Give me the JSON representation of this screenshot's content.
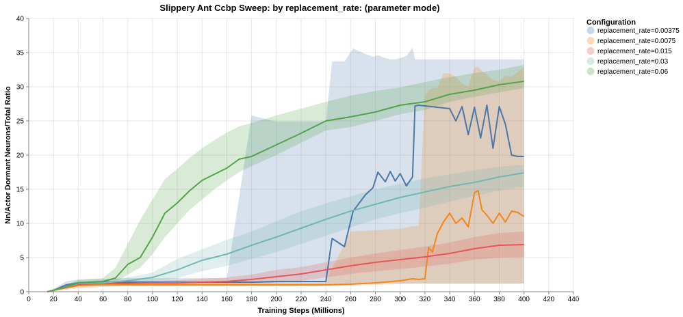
{
  "chart_data": {
    "type": "line",
    "title": "Slippery Ant Ccbp Sweep: by replacement_rate: (parameter mode)",
    "xlabel": "Training Steps (Millions)",
    "ylabel": "Nn/Actor Dormant Neurons/Total Ratio",
    "xlim": [
      0,
      440
    ],
    "ylim": [
      0,
      40
    ],
    "x_ticks": [
      "0",
      "20",
      "40",
      "60",
      "80",
      "100",
      "120",
      "140",
      "160",
      "180",
      "200",
      "220",
      "240",
      "260",
      "280",
      "300",
      "320",
      "340",
      "360",
      "380",
      "400",
      "420",
      "440"
    ],
    "y_ticks": [
      "0",
      "5",
      "10",
      "15",
      "20",
      "25",
      "30",
      "35",
      "40"
    ],
    "grid": true,
    "legend": {
      "title": "Configuration",
      "position": "top-right"
    },
    "series": [
      {
        "name": "replacement_rate=0.00375",
        "color": "#4c78a8",
        "x": [
          15,
          20,
          30,
          40,
          60,
          80,
          100,
          120,
          140,
          160,
          180,
          200,
          220,
          240,
          245,
          255,
          262,
          272,
          278,
          282,
          288,
          292,
          296,
          300,
          305,
          310,
          312,
          315,
          320,
          330,
          340,
          345,
          350,
          355,
          360,
          365,
          370,
          375,
          380,
          385,
          390,
          395,
          400
        ],
        "y": [
          0,
          0.2,
          1.0,
          1.3,
          1.4,
          1.4,
          1.4,
          1.4,
          1.4,
          1.4,
          1.4,
          1.5,
          1.5,
          1.5,
          7.8,
          6.6,
          11.8,
          14.2,
          15.2,
          17.5,
          16.1,
          17.6,
          16.2,
          17.3,
          15.5,
          16.8,
          27.2,
          27.3,
          27.2,
          27.0,
          26.8,
          25.0,
          27.1,
          23.0,
          27.0,
          22.5,
          27.3,
          21.0,
          27.1,
          24.5,
          20.0,
          19.8,
          19.8
        ],
        "lower": [
          0,
          0.1,
          0.5,
          0.8,
          1.0,
          1.0,
          1.0,
          1.0,
          1.0,
          1.0,
          1.0,
          1.0,
          1.0,
          1.0,
          1.0,
          1.0,
          1.2,
          1.2,
          1.2,
          1.2,
          1.2,
          1.2,
          1.2,
          1.2,
          1.2,
          1.2,
          1.2,
          1.2,
          1.2,
          1.2,
          1.2,
          1.2,
          1.2,
          1.2,
          1.2,
          1.2,
          1.2,
          1.2,
          1.2,
          1.2,
          1.2,
          1.2,
          1.2
        ],
        "upper": [
          0,
          0.4,
          1.5,
          1.8,
          1.9,
          2.0,
          2.0,
          2.0,
          2.0,
          2.0,
          25.8,
          24.9,
          24.9,
          24.9,
          33.7,
          33.7,
          35.6,
          34.8,
          34.4,
          34.6,
          34.2,
          34.0,
          34.0,
          34.2,
          34.5,
          35.7,
          34.0,
          34.0,
          34.0,
          34.0,
          34.0,
          34.0,
          34.0,
          34.0,
          34.0,
          34.0,
          34.0,
          34.0,
          34.0,
          34.0,
          34.0,
          34.0,
          34.0
        ]
      },
      {
        "name": "replacement_rate=0.0075",
        "color": "#f58518",
        "x": [
          15,
          20,
          40,
          60,
          80,
          100,
          120,
          140,
          160,
          180,
          200,
          220,
          240,
          260,
          280,
          300,
          310,
          315,
          320,
          323,
          326,
          330,
          335,
          340,
          345,
          350,
          355,
          360,
          363,
          366,
          370,
          375,
          380,
          385,
          390,
          395,
          400
        ],
        "y": [
          0,
          0.2,
          0.9,
          1.0,
          1.0,
          1.0,
          1.0,
          1.0,
          1.0,
          1.0,
          1.0,
          1.0,
          1.0,
          1.1,
          1.3,
          1.6,
          1.9,
          1.8,
          1.9,
          6.5,
          5.8,
          8.5,
          10.2,
          11.5,
          10.0,
          10.8,
          9.5,
          14.5,
          14.8,
          12.0,
          11.2,
          10.0,
          11.5,
          10.2,
          11.8,
          11.6,
          11.0
        ],
        "lower": [
          0,
          0.1,
          0.5,
          0.7,
          0.8,
          0.8,
          0.8,
          0.8,
          0.8,
          0.8,
          0.8,
          0.8,
          0.8,
          0.9,
          1.0,
          1.1,
          1.2,
          1.2,
          1.2,
          1.2,
          1.2,
          1.2,
          1.2,
          1.2,
          1.2,
          1.2,
          1.2,
          1.2,
          1.2,
          1.2,
          1.2,
          1.2,
          1.2,
          1.2,
          1.2,
          1.2,
          1.2
        ],
        "upper": [
          0,
          0.4,
          1.3,
          1.4,
          1.4,
          1.4,
          1.4,
          1.4,
          1.5,
          1.5,
          1.5,
          1.5,
          1.6,
          8.8,
          9.0,
          9.2,
          9.6,
          9.6,
          28.7,
          29.5,
          29.8,
          29.8,
          32.0,
          31.9,
          31.5,
          30.5,
          30.0,
          32.8,
          32.9,
          32.3,
          31.8,
          31.0,
          30.8,
          31.6,
          31.5,
          32.2,
          32.9
        ]
      },
      {
        "name": "replacement_rate=0.015",
        "color": "#e45756",
        "x": [
          15,
          20,
          40,
          60,
          80,
          100,
          120,
          140,
          160,
          180,
          200,
          220,
          240,
          260,
          280,
          300,
          320,
          340,
          360,
          380,
          400
        ],
        "y": [
          0,
          0.2,
          1.1,
          1.2,
          1.2,
          1.3,
          1.3,
          1.4,
          1.5,
          1.8,
          2.2,
          2.6,
          3.2,
          3.8,
          4.3,
          4.7,
          5.1,
          5.6,
          6.3,
          6.8,
          6.9
        ],
        "lower": [
          0,
          0.1,
          0.8,
          0.9,
          0.9,
          1.0,
          1.0,
          1.1,
          1.1,
          1.2,
          1.3,
          1.6,
          2.1,
          2.6,
          3.0,
          3.3,
          3.7,
          4.1,
          4.7,
          5.0,
          5.1
        ],
        "upper": [
          0,
          0.3,
          1.4,
          1.5,
          1.6,
          1.6,
          1.7,
          1.9,
          2.1,
          2.5,
          3.2,
          3.6,
          4.3,
          5.0,
          5.6,
          6.1,
          6.6,
          7.2,
          8.0,
          8.6,
          8.8
        ]
      },
      {
        "name": "replacement_rate=0.03",
        "color": "#72b7b2",
        "x": [
          15,
          20,
          40,
          60,
          80,
          100,
          120,
          140,
          160,
          180,
          200,
          220,
          240,
          260,
          280,
          300,
          320,
          340,
          360,
          380,
          400
        ],
        "y": [
          0,
          0.2,
          1.2,
          1.3,
          1.6,
          2.1,
          3.2,
          4.6,
          5.5,
          6.8,
          8.0,
          9.3,
          10.6,
          11.8,
          12.8,
          13.8,
          14.6,
          15.4,
          16.0,
          16.8,
          17.4
        ],
        "lower": [
          0,
          0.1,
          0.9,
          1.0,
          1.2,
          1.5,
          2.0,
          3.0,
          3.8,
          4.8,
          5.8,
          7.0,
          8.2,
          9.4,
          10.6,
          11.5,
          12.3,
          13.2,
          14.0,
          14.8,
          15.4
        ],
        "upper": [
          0,
          0.3,
          1.5,
          1.6,
          2.1,
          2.8,
          4.8,
          6.2,
          7.6,
          8.8,
          10.3,
          11.8,
          12.9,
          14.0,
          15.0,
          15.8,
          16.6,
          17.2,
          17.8,
          18.3,
          18.6
        ]
      },
      {
        "name": "replacement_rate=0.06",
        "color": "#54a24b",
        "x": [
          15,
          20,
          40,
          60,
          70,
          80,
          90,
          100,
          110,
          120,
          130,
          140,
          150,
          160,
          170,
          180,
          200,
          220,
          240,
          260,
          280,
          300,
          320,
          340,
          360,
          380,
          400
        ],
        "y": [
          0,
          0.2,
          1.3,
          1.5,
          2.0,
          4.0,
          5.0,
          8.0,
          11.5,
          13.0,
          14.8,
          16.3,
          17.2,
          18.1,
          19.4,
          19.8,
          21.5,
          23.2,
          25.0,
          25.6,
          26.3,
          27.3,
          27.8,
          28.9,
          29.5,
          30.3,
          30.8
        ],
        "lower": [
          0,
          0.1,
          0.9,
          1.0,
          1.4,
          2.5,
          3.5,
          5.5,
          8.0,
          10.0,
          12.0,
          13.5,
          15.0,
          16.3,
          17.5,
          18.4,
          20.0,
          21.8,
          23.6,
          24.1,
          25.0,
          26.0,
          26.6,
          27.8,
          28.5,
          29.2,
          29.8
        ],
        "upper": [
          0,
          0.3,
          1.7,
          2.0,
          3.5,
          7.0,
          10.5,
          13.5,
          16.5,
          18.0,
          19.6,
          21.0,
          22.2,
          23.3,
          24.2,
          24.7,
          25.8,
          26.8,
          27.8,
          28.7,
          29.4,
          29.9,
          30.7,
          31.4,
          32.0,
          32.5,
          33.2
        ]
      }
    ]
  }
}
